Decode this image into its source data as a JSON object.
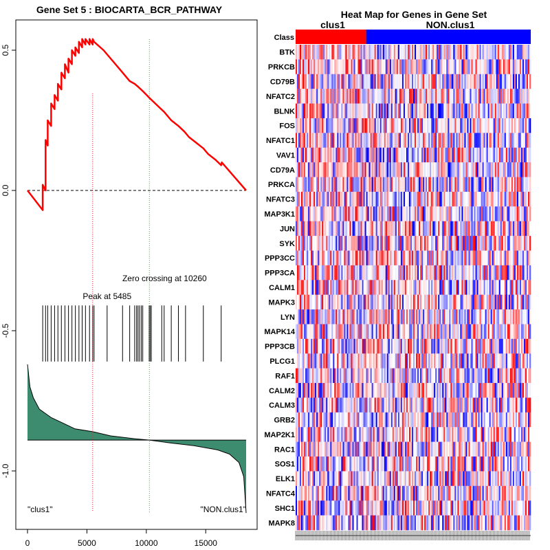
{
  "chart_data": [
    {
      "type": "line",
      "title": "Gene Set  5 : BIOCARTA_BCR_PATHWAY",
      "xlim": [
        0,
        18500
      ],
      "ylim": [
        -1.2,
        0.6
      ],
      "x_ticks": [
        0,
        5000,
        10000,
        15000
      ],
      "x_tick_labels": [
        "0",
        "5000",
        "10000",
        "15000"
      ],
      "y_ticks": [
        0.5,
        0.0,
        -0.5,
        -1.0
      ],
      "y_tick_labels": [
        "0.5",
        "0.0",
        "-0.5",
        "-1.0"
      ],
      "enrichment_profile": {
        "color": "#ff0000",
        "x": [
          0,
          1280,
          1280,
          1520,
          1520,
          1700,
          1700,
          1990,
          1990,
          2280,
          2280,
          2560,
          2560,
          2850,
          2850,
          3150,
          3150,
          3450,
          3450,
          3740,
          3740,
          4030,
          4030,
          4330,
          4330,
          4600,
          4600,
          4880,
          4880,
          5220,
          5220,
          5485,
          5485,
          5600,
          6400,
          8000,
          8200,
          8600,
          9020,
          9300,
          9800,
          10260,
          11000,
          11500,
          12100,
          12700,
          13200,
          13600,
          14200,
          14800,
          15200,
          15800,
          16300,
          16350,
          18400
        ],
        "y": [
          0.0,
          -0.07,
          0.02,
          0.0,
          0.18,
          0.16,
          0.25,
          0.23,
          0.31,
          0.29,
          0.34,
          0.32,
          0.38,
          0.36,
          0.42,
          0.4,
          0.45,
          0.42,
          0.47,
          0.45,
          0.5,
          0.48,
          0.51,
          0.49,
          0.53,
          0.51,
          0.54,
          0.52,
          0.54,
          0.52,
          0.54,
          0.52,
          0.54,
          0.53,
          0.5,
          0.42,
          0.41,
          0.39,
          0.38,
          0.37,
          0.35,
          0.33,
          0.3,
          0.28,
          0.25,
          0.23,
          0.21,
          0.19,
          0.17,
          0.15,
          0.13,
          0.11,
          0.09,
          0.1,
          0.0
        ]
      },
      "zero_line": 0.0,
      "peak": {
        "x": 5485,
        "label": "Peak at 5485",
        "color": "#e02020"
      },
      "zero_crossing": {
        "x": 10260,
        "label": "Zero crossing at 10260",
        "color": "#20c020"
      },
      "hit_positions": [
        1280,
        1520,
        1700,
        1990,
        2280,
        2560,
        2850,
        3150,
        3450,
        3740,
        4030,
        4330,
        4600,
        4880,
        5220,
        5485,
        5600,
        6700,
        8000,
        8600,
        9020,
        9180,
        9300,
        9430,
        9580,
        9700,
        10240,
        10320,
        10420,
        11300,
        11500,
        12100,
        12700,
        13300,
        14800,
        16300
      ],
      "hits_ylim": [
        -0.41,
        -0.61
      ],
      "ranked_metric": {
        "color": "#3d8c6f",
        "baseline": -0.89,
        "x": [
          0,
          200,
          500,
          1000,
          2000,
          3000,
          4000,
          5485,
          7000,
          9000,
          10260,
          12000,
          14000,
          16000,
          17000,
          17800,
          18200,
          18400
        ],
        "y": [
          -0.62,
          -0.7,
          -0.74,
          -0.78,
          -0.81,
          -0.83,
          -0.85,
          -0.86,
          -0.875,
          -0.885,
          -0.89,
          -0.9,
          -0.91,
          -0.925,
          -0.94,
          -0.97,
          -1.02,
          -1.15
        ]
      },
      "corner_labels": {
        "left": "\"clus1\"",
        "right": "\"NON.clus1\""
      }
    },
    {
      "type": "heatmap",
      "title": "Heat Map for Genes in Gene Set",
      "class_row_label": "Class",
      "classes": [
        {
          "name": "clus1",
          "fraction": 0.3,
          "color": "#ff0000"
        },
        {
          "name": "NON.clus1",
          "fraction": 0.7,
          "color": "#0000ff"
        }
      ],
      "genes": [
        "BTK",
        "PRKCB",
        "CD79B",
        "NFATC2",
        "BLNK",
        "FOS",
        "NFATC1",
        "VAV1",
        "CD79A",
        "PRKCA",
        "NFATC3",
        "MAP3K1",
        "JUN",
        "SYK",
        "PPP3CC",
        "PPP3CA",
        "CALM1",
        "MAPK3",
        "LYN",
        "MAPK14",
        "PPP3CB",
        "PLCG1",
        "RAF1",
        "CALM2",
        "CALM3",
        "GRB2",
        "MAP2K1",
        "RAC1",
        "SOS1",
        "ELK1",
        "NFATC4",
        "SHC1",
        "MAPK8"
      ],
      "value_range": [
        -1,
        1
      ],
      "low_color": "#0000ff",
      "mid_color": "#ffffff",
      "high_color": "#ff0000",
      "columns": 170
    }
  ]
}
